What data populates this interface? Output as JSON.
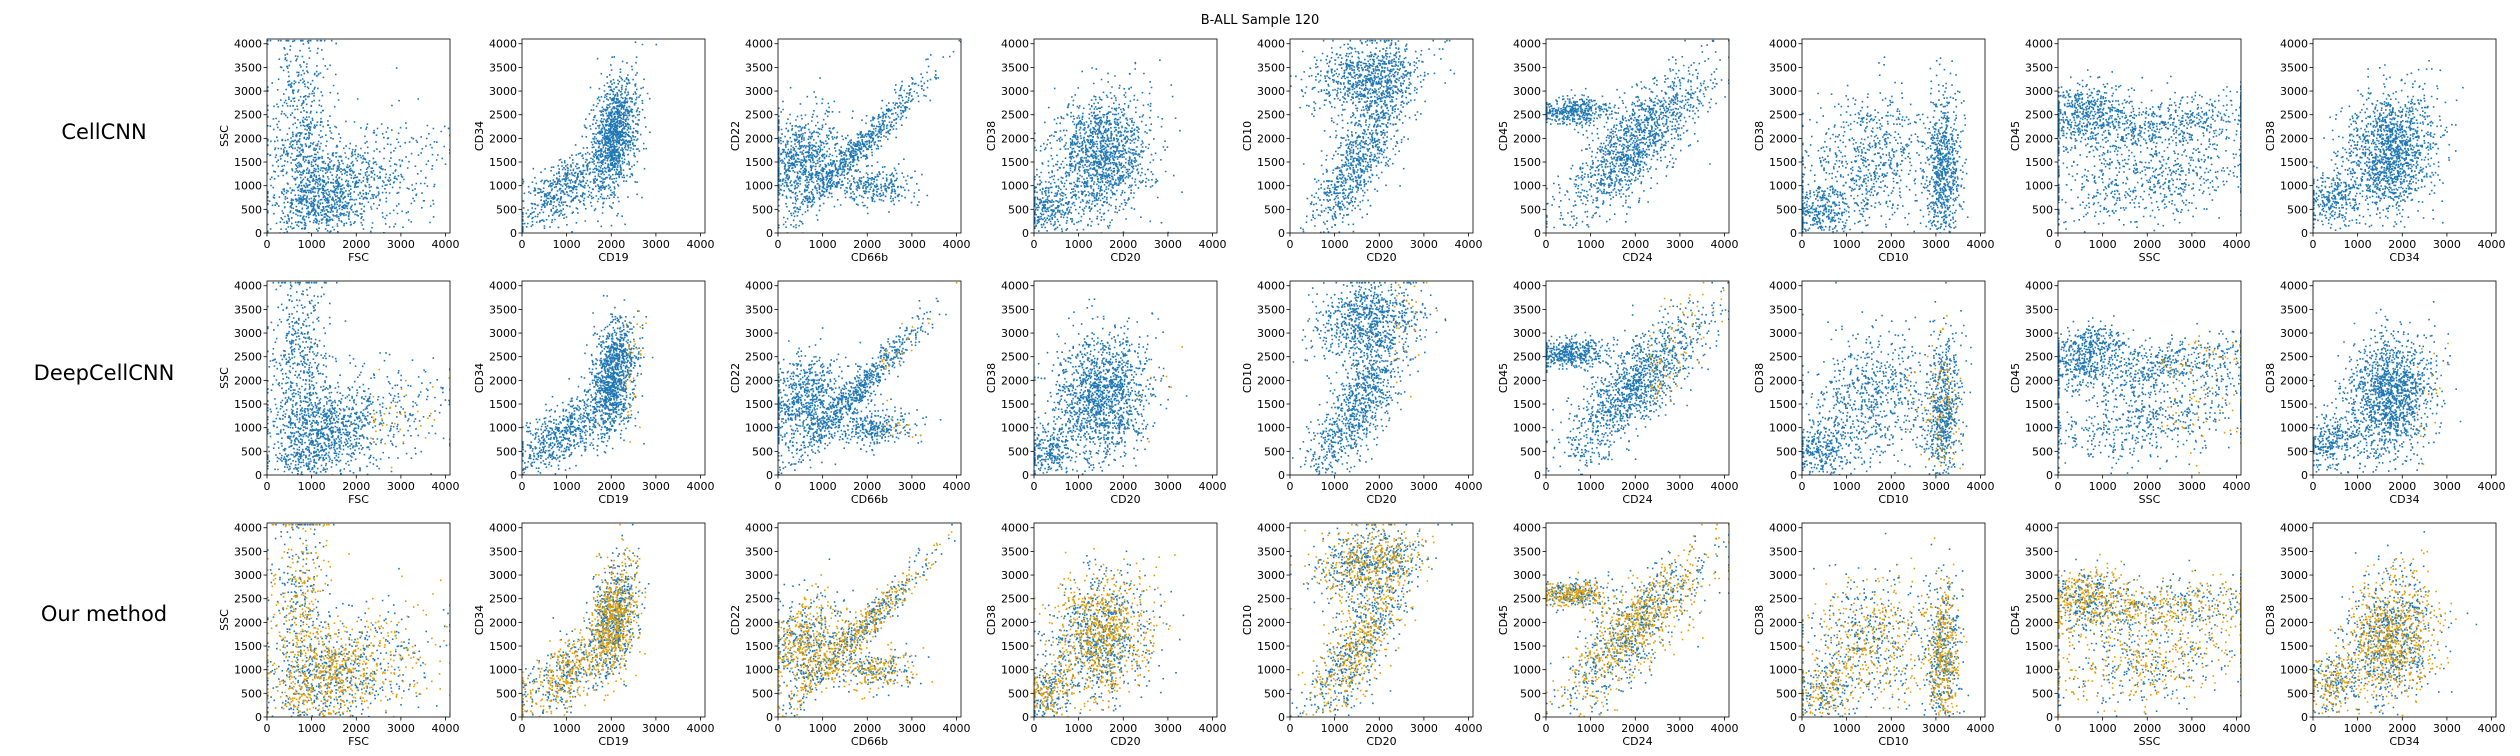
{
  "title": "B-ALL Sample 120",
  "colors": {
    "base": "#1f77b4",
    "highlight": "#e69f00",
    "axis": "#000000"
  },
  "rows": [
    "CellCNN",
    "DeepCellCNN",
    "Our method"
  ],
  "chart_data": {
    "type": "scatter",
    "title": "B-ALL Sample 120",
    "layout": "3 rows x 9 columns of scatter panels; rows are methods, columns are marker pairs",
    "xlim": [
      0,
      4100
    ],
    "ylim": [
      0,
      4100
    ],
    "ticks": [
      0,
      500,
      1000,
      1500,
      2000,
      2500,
      3000,
      3500,
      4000
    ],
    "xticks": [
      0,
      1000,
      2000,
      3000,
      4000
    ],
    "point_colors": {
      "blue": "non-highlighted cells",
      "orange": "highlighted cells"
    },
    "panels": [
      {
        "xlabel": "FSC",
        "ylabel": "SSC"
      },
      {
        "xlabel": "CD19",
        "ylabel": "CD34"
      },
      {
        "xlabel": "CD66b",
        "ylabel": "CD22"
      },
      {
        "xlabel": "CD20",
        "ylabel": "CD38"
      },
      {
        "xlabel": "CD20",
        "ylabel": "CD10"
      },
      {
        "xlabel": "CD24",
        "ylabel": "CD45"
      },
      {
        "xlabel": "CD10",
        "ylabel": "CD38"
      },
      {
        "xlabel": "SSC",
        "ylabel": "CD45"
      },
      {
        "xlabel": "CD34",
        "ylabel": "CD38"
      }
    ]
  }
}
